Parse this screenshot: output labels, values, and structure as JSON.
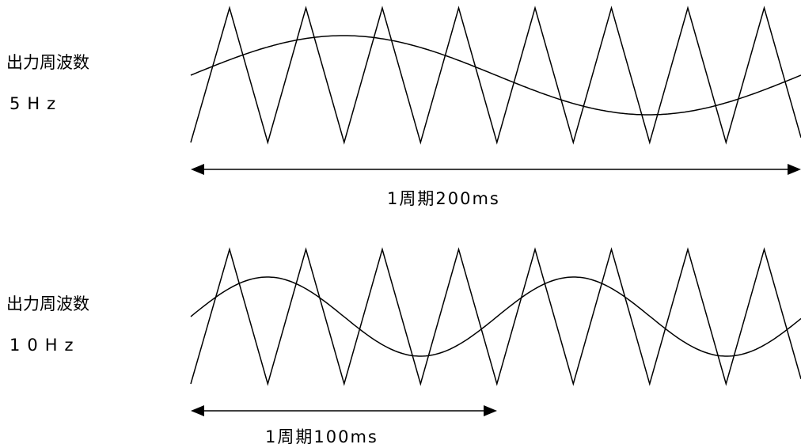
{
  "panels": [
    {
      "freq_title": "出力周波数",
      "freq_value": "5Hz",
      "period_label": "1周期200ms"
    },
    {
      "freq_title": "出力周波数",
      "freq_value": "10Hz",
      "period_label": "1周期100ms"
    }
  ]
}
